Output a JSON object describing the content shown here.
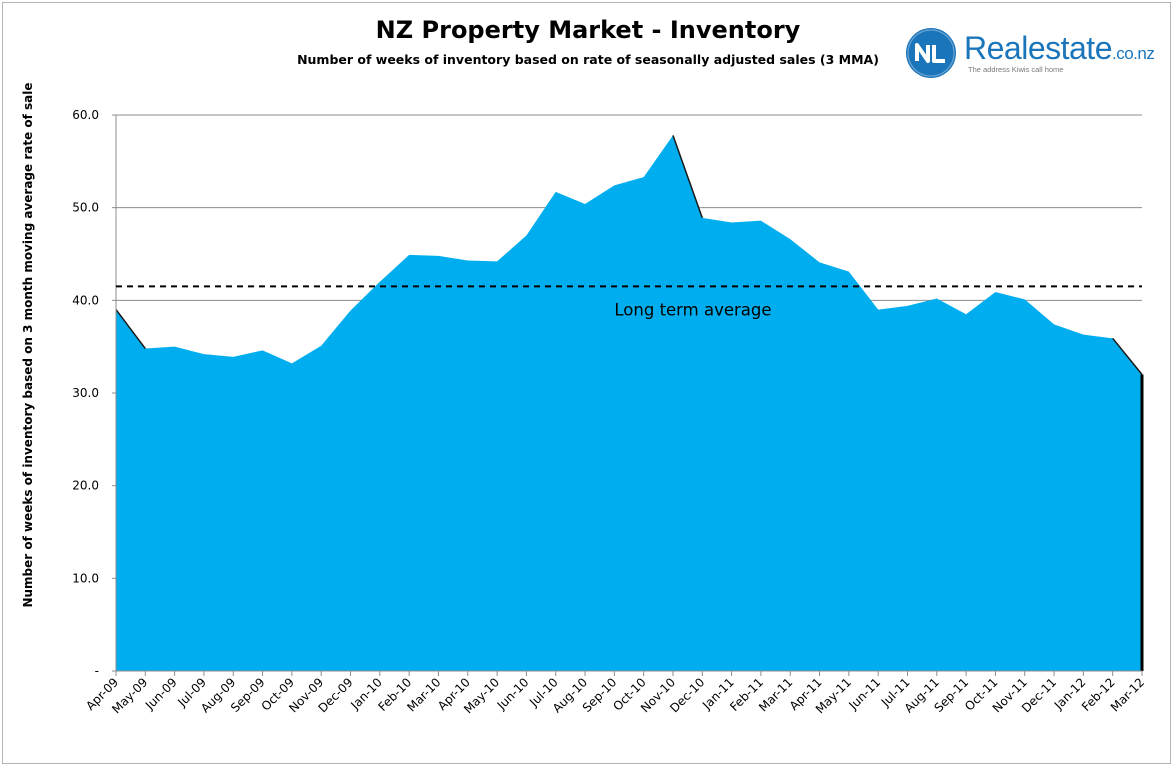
{
  "brand": {
    "name": "Realestate",
    "domain": ".co.nz",
    "tagline": "The address Kiwis call home",
    "color": "#1b75bb"
  },
  "chart_data": {
    "type": "area",
    "title": "NZ Property Market - Inventory",
    "subtitle": "Number of weeks of inventory based on rate of seasonally adjusted sales (3 MMA)",
    "xlabel": "",
    "ylabel": "Number of weeks of inventory based on 3 month moving average rate of sale",
    "categories": [
      "Apr-09",
      "May-09",
      "Jun-09",
      "Jul-09",
      "Aug-09",
      "Sep-09",
      "Oct-09",
      "Nov-09",
      "Dec-09",
      "Jan-10",
      "Feb-10",
      "Mar-10",
      "Apr-10",
      "May-10",
      "Jun-10",
      "Jul-10",
      "Aug-10",
      "Sep-10",
      "Oct-10",
      "Nov-10",
      "Dec-10",
      "Jan-11",
      "Feb-11",
      "Mar-11",
      "Apr-11",
      "May-11",
      "Jun-11",
      "Jul-11",
      "Aug-11",
      "Sep-11",
      "Oct-11",
      "Nov-11",
      "Dec-11",
      "Jan-12",
      "Feb-12",
      "Mar-12"
    ],
    "values": [
      39.0,
      34.8,
      35.0,
      34.2,
      33.9,
      34.6,
      33.2,
      35.1,
      38.9,
      42.0,
      44.9,
      44.8,
      44.3,
      44.2,
      47.0,
      51.7,
      50.4,
      52.4,
      53.3,
      57.8,
      48.9,
      48.4,
      48.6,
      46.6,
      44.1,
      43.1,
      39.0,
      39.4,
      40.2,
      38.5,
      40.9,
      40.1,
      37.4,
      36.3,
      35.9,
      32.0
    ],
    "ylim": [
      0,
      60
    ],
    "yticks": [
      0,
      10,
      20,
      30,
      40,
      50,
      60
    ],
    "ytick_labels": [
      "-",
      "10.0",
      "20.0",
      "30.0",
      "40.0",
      "50.0",
      "60.0"
    ],
    "grid": true,
    "fill_color": "#00aeef",
    "reference_line": {
      "label": "Long term average",
      "value": 41.5,
      "style": "dashed"
    }
  }
}
